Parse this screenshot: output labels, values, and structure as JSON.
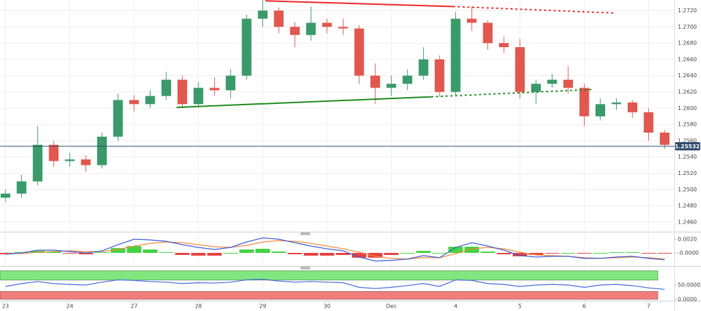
{
  "chart_data": [
    {
      "type": "candlestick",
      "x": [
        0,
        0.25,
        0.5,
        0.75,
        1,
        1.25,
        1.5,
        1.75,
        2,
        2.25,
        2.5,
        2.75,
        3,
        3.25,
        3.5,
        3.75,
        4,
        4.25,
        4.5,
        4.75,
        5,
        5.25,
        5.5,
        5.75,
        6,
        6.25,
        6.5,
        6.75,
        7,
        7.25,
        7.5,
        7.75,
        8,
        8.25,
        8.5,
        8.75,
        9,
        9.25,
        9.5,
        9.75,
        10,
        10.25
      ],
      "open": [
        1.249,
        1.2495,
        1.251,
        1.2555,
        1.2535,
        1.2537,
        1.253,
        1.2565,
        1.261,
        1.2605,
        1.2615,
        1.2635,
        1.2605,
        1.2625,
        1.2622,
        1.264,
        1.271,
        1.272,
        1.27,
        1.269,
        1.2705,
        1.27,
        1.2698,
        1.264,
        1.2625,
        1.263,
        1.264,
        1.266,
        1.262,
        1.271,
        1.2705,
        1.268,
        1.2675,
        1.262,
        1.263,
        1.2635,
        1.2625,
        1.259,
        1.2605,
        1.2607,
        1.2595,
        1.257
      ],
      "high": [
        1.25,
        1.2518,
        1.2578,
        1.256,
        1.2545,
        1.2542,
        1.257,
        1.2618,
        1.2616,
        1.2622,
        1.2645,
        1.264,
        1.2632,
        1.2638,
        1.2648,
        1.2715,
        1.2733,
        1.2724,
        1.2706,
        1.2725,
        1.271,
        1.271,
        1.2702,
        1.2655,
        1.264,
        1.2648,
        1.2675,
        1.2665,
        1.2718,
        1.2725,
        1.2708,
        1.2688,
        1.2685,
        1.2635,
        1.2642,
        1.2652,
        1.263,
        1.2612,
        1.2612,
        1.261,
        1.26,
        1.2573
      ],
      "low": [
        1.2485,
        1.249,
        1.2505,
        1.2528,
        1.2528,
        1.2522,
        1.2526,
        1.256,
        1.2596,
        1.26,
        1.261,
        1.26,
        1.2601,
        1.2615,
        1.2612,
        1.2635,
        1.27,
        1.2692,
        1.2675,
        1.2683,
        1.2692,
        1.269,
        1.263,
        1.2605,
        1.2615,
        1.2622,
        1.2635,
        1.2614,
        1.2615,
        1.2695,
        1.2672,
        1.2668,
        1.2612,
        1.2605,
        1.2625,
        1.2618,
        1.2578,
        1.2585,
        1.2598,
        1.2588,
        1.256,
        1.255
      ],
      "close": [
        1.2495,
        1.251,
        1.2555,
        1.2535,
        1.2537,
        1.253,
        1.2565,
        1.261,
        1.2605,
        1.2615,
        1.2635,
        1.2605,
        1.2625,
        1.2622,
        1.264,
        1.271,
        1.272,
        1.27,
        1.269,
        1.2705,
        1.27,
        1.2698,
        1.264,
        1.2625,
        1.263,
        1.264,
        1.266,
        1.262,
        1.271,
        1.2705,
        1.268,
        1.2675,
        1.262,
        1.263,
        1.2635,
        1.2625,
        1.259,
        1.2605,
        1.2607,
        1.2595,
        1.257,
        1.2555
      ],
      "up_color": "#3a9a6a",
      "down_color": "#e0584e",
      "xlim": [
        -0.085,
        10.4
      ],
      "xticks": [
        {
          "value": 0,
          "label": "23"
        },
        {
          "value": 1,
          "label": "24"
        },
        {
          "value": 2,
          "label": "27"
        },
        {
          "value": 3,
          "label": "28"
        },
        {
          "value": 4,
          "label": "29"
        },
        {
          "value": 5,
          "label": "30"
        },
        {
          "value": 6,
          "label": "Dec"
        },
        {
          "value": 7,
          "label": "4"
        },
        {
          "value": 8,
          "label": "5"
        },
        {
          "value": 9,
          "label": "6"
        },
        {
          "value": 10,
          "label": "7"
        }
      ],
      "ylim": [
        1.2449,
        1.2733
      ],
      "yticks": [
        {
          "value": 1.272,
          "label": "1.2720"
        },
        {
          "value": 1.27,
          "label": "1.2700"
        },
        {
          "value": 1.268,
          "label": "1.2680"
        },
        {
          "value": 1.266,
          "label": "1.2660"
        },
        {
          "value": 1.264,
          "label": "1.2640"
        },
        {
          "value": 1.262,
          "label": "1.2620"
        },
        {
          "value": 1.26,
          "label": "1.2600"
        },
        {
          "value": 1.258,
          "label": "1.2580"
        },
        {
          "value": 1.256,
          "label": "1.2560"
        },
        {
          "value": 1.254,
          "label": "1.2540"
        },
        {
          "value": 1.252,
          "label": "1.2520"
        },
        {
          "value": 1.25,
          "label": "1.2500"
        },
        {
          "value": 1.248,
          "label": "1.2480"
        },
        {
          "value": 1.246,
          "label": "1.2460"
        }
      ],
      "grid": true,
      "last_price": 1.25532,
      "trendlines": [
        {
          "color": "#ee2222",
          "x": [
            4.04,
            6.96,
            9.47
          ],
          "y": [
            1.2732,
            1.2725,
            1.2717
          ]
        },
        {
          "color": "#1a8a1a",
          "x": [
            2.66,
            6.62,
            9.12
          ],
          "y": [
            1.2601,
            1.2614,
            1.2623
          ]
        }
      ]
    },
    {
      "type": "macd",
      "macd": [
        -0.0002,
        0,
        0.0004,
        0.0004,
        0.0002,
        0,
        0.0003,
        0.0012,
        0.002,
        0.0019,
        0.0017,
        0.0012,
        0.0008,
        0.0005,
        0.0008,
        0.0016,
        0.0022,
        0.002,
        0.0015,
        0.001,
        0.0006,
        0.0003,
        -0.0006,
        -0.0012,
        -0.0011,
        -0.0009,
        -0.0004,
        -0.0007,
        0.0008,
        0.0015,
        0.001,
        0.0004,
        -0.0004,
        -0.0006,
        -0.0005,
        -0.0005,
        -0.0008,
        -0.0008,
        -0.0006,
        -0.0005,
        -0.0008,
        -0.001
      ],
      "signal": [
        0,
        -0.0001,
        0.0001,
        0.0002,
        0.0003,
        0.0002,
        0.0002,
        0.0005,
        0.001,
        0.0014,
        0.0016,
        0.0015,
        0.0012,
        0.0009,
        0.0008,
        0.0011,
        0.0016,
        0.0018,
        0.0017,
        0.0014,
        0.001,
        0.0006,
        0.0001,
        -0.0005,
        -0.0008,
        -0.0009,
        -0.0007,
        -0.0007,
        -0.0001,
        0.0006,
        0.0008,
        0.0006,
        0.0001,
        -0.0003,
        -0.0004,
        -0.0005,
        -0.0007,
        -0.0008,
        -0.0007,
        -0.0006,
        -0.0007,
        -0.0009
      ],
      "histogram": [
        -0.0002,
        0.0001,
        0.0003,
        0.0002,
        -0.0001,
        -0.0002,
        0.0001,
        0.0007,
        0.001,
        0.0005,
        0.0001,
        -0.0003,
        -0.0004,
        -0.0004,
        0,
        0.0005,
        0.0006,
        0.0002,
        -0.0002,
        -0.0004,
        -0.0004,
        -0.0003,
        -0.0007,
        -0.0007,
        -0.0003,
        0,
        0.0003,
        0,
        0.0009,
        0.0009,
        0.0002,
        -0.0002,
        -0.0005,
        -0.0003,
        -0.0001,
        0,
        -0.0001,
        0,
        0.0001,
        0.0001,
        -0.0001,
        -0.0001
      ],
      "macd_color": "#3a5bd9",
      "signal_color": "#f08a3c",
      "positive_color": "#22cc22",
      "negative_color": "#e02020",
      "ylim": [
        -0.0013,
        0.0027
      ],
      "yticks": [
        {
          "value": 0.002,
          "label": "0.0020"
        },
        {
          "value": 0,
          "label": "-0.0000"
        }
      ]
    },
    {
      "type": "line",
      "values": [
        45,
        55,
        62,
        55,
        52,
        50,
        60,
        68,
        66,
        62,
        60,
        55,
        58,
        57,
        60,
        68,
        70,
        64,
        60,
        62,
        60,
        58,
        42,
        38,
        42,
        48,
        55,
        45,
        68,
        66,
        55,
        52,
        45,
        50,
        52,
        50,
        42,
        50,
        52,
        48,
        40,
        35
      ],
      "color": "#4466dd",
      "ylim": [
        0,
        100
      ],
      "yticks": [
        {
          "value": 50,
          "label": "50.0000"
        },
        {
          "value": 0,
          "label": "0.0000"
        }
      ],
      "bands": [
        {
          "from": 67,
          "to": 100,
          "color": "#7fe77f"
        },
        {
          "from": 0,
          "to": 28,
          "color": "#f27d7d"
        }
      ]
    }
  ]
}
